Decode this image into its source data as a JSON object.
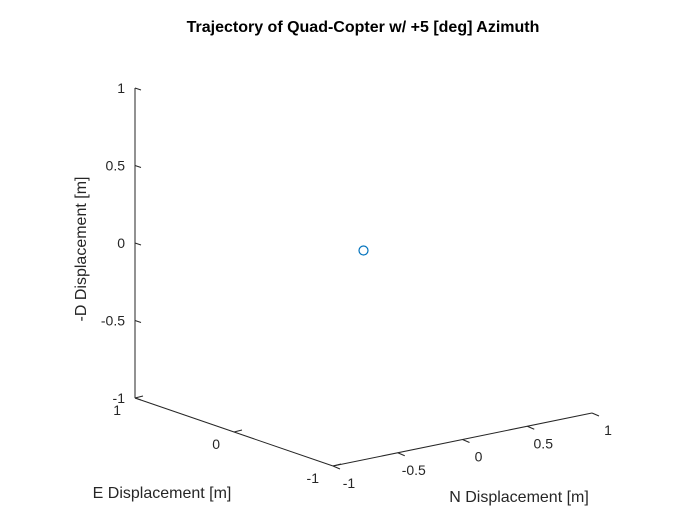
{
  "chart_data": {
    "type": "scatter",
    "title": "Trajectory of Quad-Copter w/ +5 [deg] Azimuth",
    "xlabel": "N Displacement [m]",
    "ylabel": "E Displacement [m]",
    "zlabel": "-D Displacement [m]",
    "xlim": [
      -1,
      1
    ],
    "ylim": [
      -1,
      1
    ],
    "zlim": [
      -1,
      1
    ],
    "x_ticks": [
      "-1",
      "-0.5",
      "0",
      "0.5",
      "1"
    ],
    "x_tick_values": [
      -1,
      -0.5,
      0,
      0.5,
      1
    ],
    "y_ticks": [
      "-1",
      "0",
      "1"
    ],
    "y_tick_values": [
      -1,
      0,
      1
    ],
    "z_ticks": [
      "-1",
      "-0.5",
      "0",
      "0.5",
      "1"
    ],
    "z_tick_values": [
      -1,
      -0.5,
      0,
      0.5,
      1
    ],
    "grid": false,
    "marker": "circle",
    "marker_color": "#0072BD",
    "points": [
      {
        "x": 0,
        "y": 0,
        "z": 0
      }
    ]
  }
}
